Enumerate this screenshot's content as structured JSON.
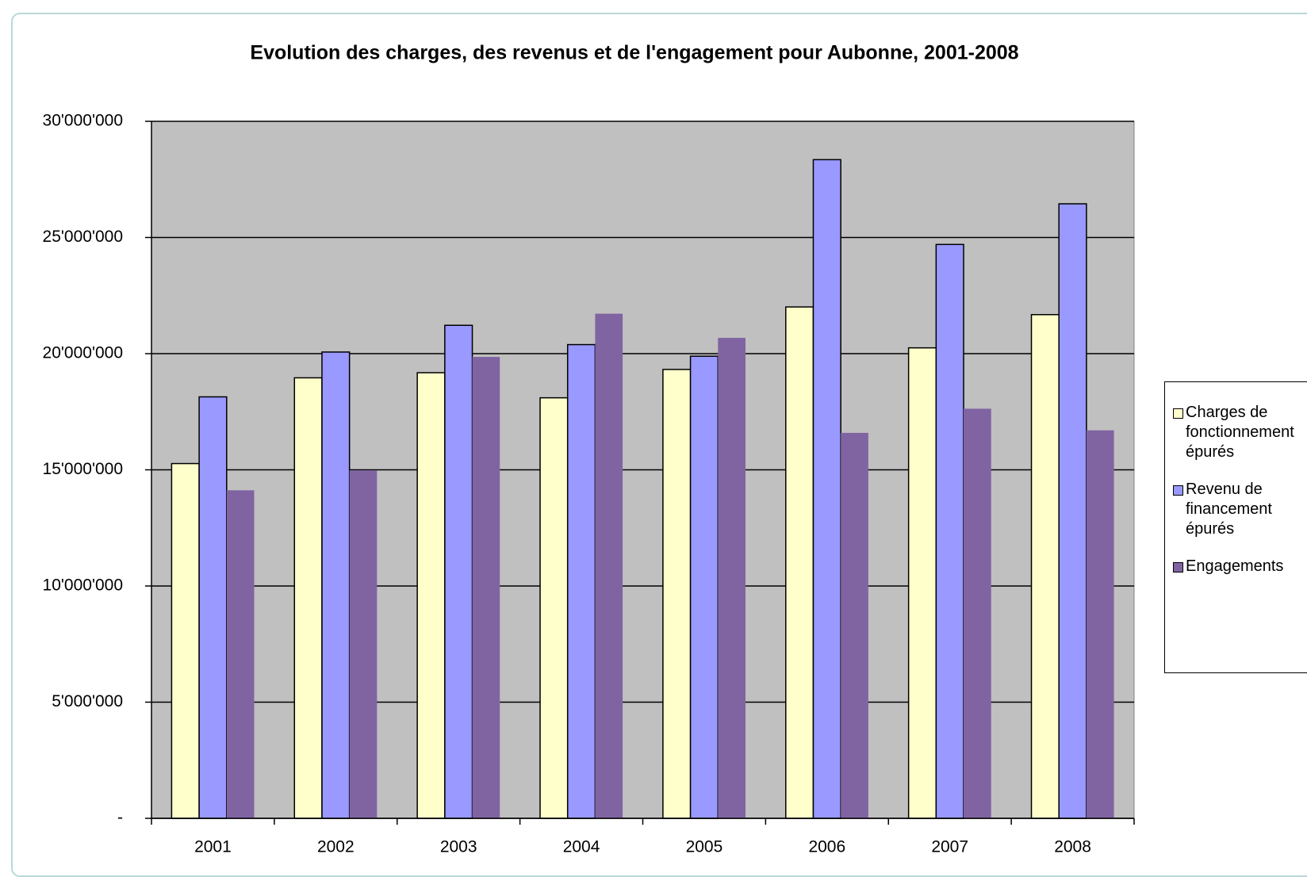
{
  "chart_data": {
    "type": "bar",
    "title": "Evolution des charges, des revenus et de l'engagement pour Aubonne, 2001-2008",
    "categories": [
      "2001",
      "2002",
      "2003",
      "2004",
      "2005",
      "2006",
      "2007",
      "2008"
    ],
    "series": [
      {
        "name": "Charges de fonctionnement épurés",
        "color": "#FFFFCC",
        "values": [
          15270000,
          18960000,
          19180000,
          18100000,
          19320000,
          22010000,
          20250000,
          21680000
        ]
      },
      {
        "name": "Revenu de financement épurés",
        "color": "#9999FF",
        "values": [
          18140000,
          20070000,
          21220000,
          20390000,
          19890000,
          28350000,
          24700000,
          26450000
        ]
      },
      {
        "name": "Engagements",
        "color": "#8064A2",
        "values": [
          14120000,
          14980000,
          19860000,
          21720000,
          20680000,
          16590000,
          17630000,
          16700000
        ]
      }
    ],
    "ylim": [
      0,
      30000000
    ],
    "yticks": [
      {
        "value": 0,
        "label": "-"
      },
      {
        "value": 5000000,
        "label": "5'000'000"
      },
      {
        "value": 10000000,
        "label": "10'000'000"
      },
      {
        "value": 15000000,
        "label": "15'000'000"
      },
      {
        "value": 20000000,
        "label": "20'000'000"
      },
      {
        "value": 25000000,
        "label": "25'000'000"
      },
      {
        "value": 30000000,
        "label": "30'000'000"
      }
    ],
    "grid": true,
    "legend": "right"
  }
}
